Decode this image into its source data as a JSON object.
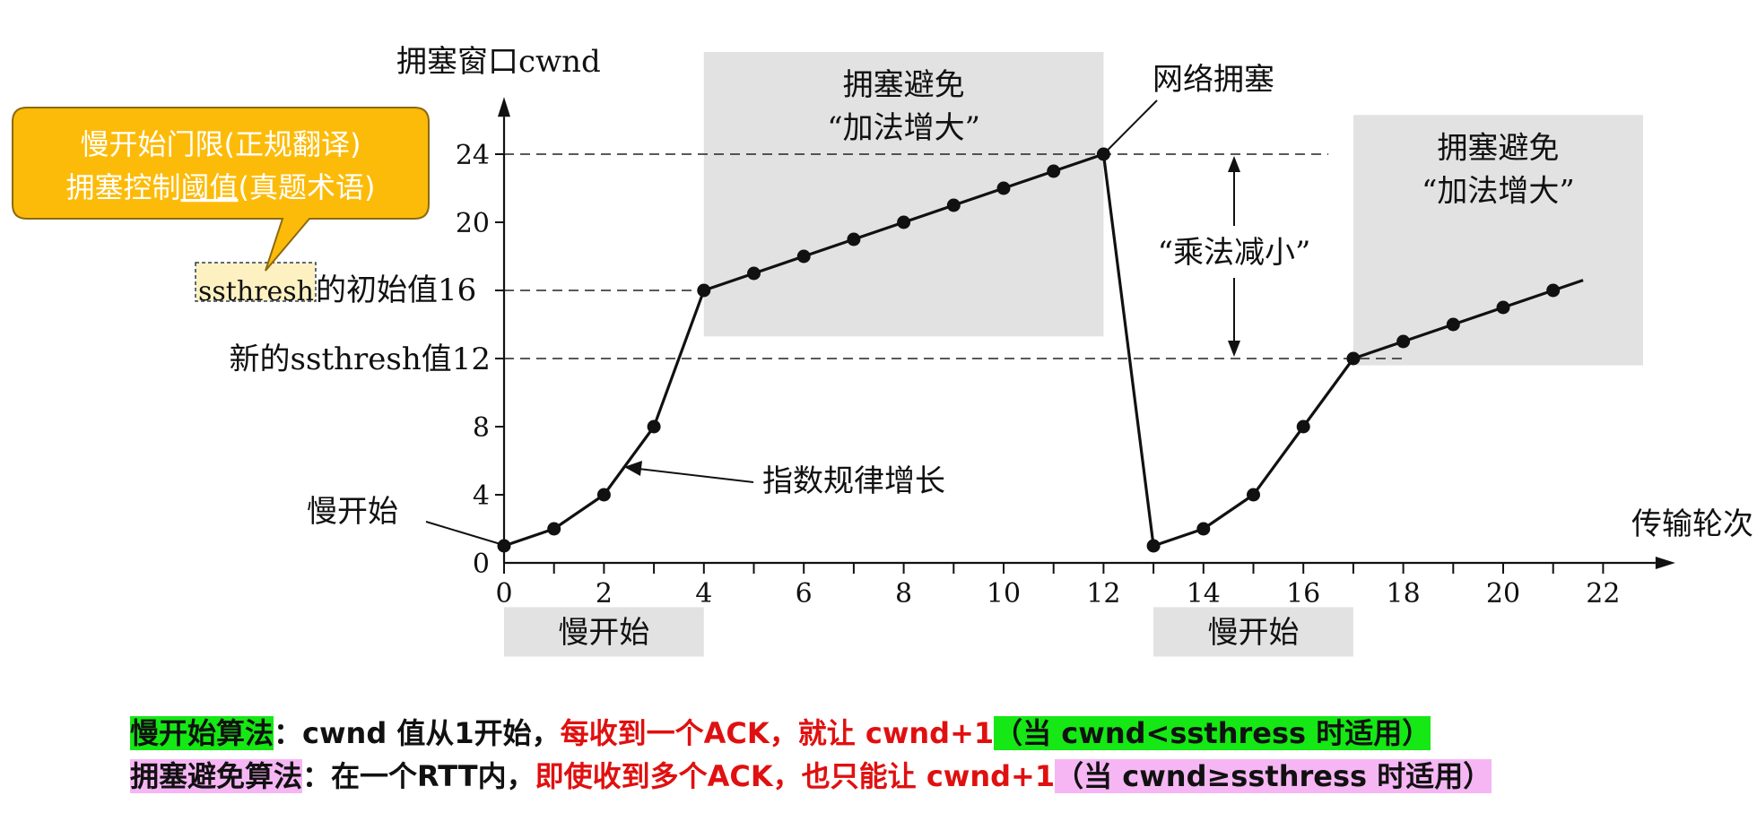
{
  "chart_data": {
    "type": "line",
    "title": "",
    "ylabel": "拥塞窗口cwnd",
    "xlabel": "传输轮次",
    "xlim": [
      0,
      23
    ],
    "ylim": [
      0,
      26
    ],
    "x_ticks": [
      0,
      2,
      4,
      6,
      8,
      10,
      12,
      14,
      16,
      18,
      20,
      22
    ],
    "x_minor_ticks": [
      1,
      3,
      5,
      7,
      9,
      11,
      13,
      15,
      17,
      19,
      21
    ],
    "y_ticks": [
      0,
      4,
      8,
      12,
      16,
      20,
      24
    ],
    "series": [
      {
        "x": [
          0,
          1,
          2,
          3,
          4,
          5,
          6,
          7,
          8,
          9,
          10,
          11,
          12,
          13,
          14,
          15,
          16,
          17,
          18,
          19,
          20,
          21
        ],
        "values": [
          1,
          2,
          4,
          8,
          16,
          17,
          18,
          19,
          20,
          21,
          22,
          23,
          24,
          1,
          2,
          4,
          8,
          12,
          13,
          14,
          15,
          16
        ]
      }
    ],
    "tail_to": [
      21.6,
      16.6
    ],
    "reference_lines": [
      {
        "y": 24,
        "x_from": 0,
        "x_to": 16.5,
        "label": ""
      },
      {
        "y": 16,
        "x_from": 0,
        "x_to": 4,
        "label": "ssthresh的初始值16"
      },
      {
        "y": 12,
        "x_from": 0,
        "x_to": 18,
        "label": "新的ssthresh值12"
      }
    ],
    "shaded_regions": [
      {
        "x0": 0,
        "x1": 4,
        "y0": -2.6,
        "y1": -5.5,
        "label": "慢开始"
      },
      {
        "x0": 13,
        "x1": 17,
        "y0": -2.6,
        "y1": -5.5,
        "label": "慢开始"
      },
      {
        "x0": 4,
        "x1": 12,
        "y0": 13.3,
        "y1": 30.0,
        "label_line1": "拥塞避免",
        "label_line2": "“加法增大”"
      },
      {
        "x0": 17,
        "x1": 22.8,
        "y0": 11.6,
        "y1": 26.3,
        "label_line1": "拥塞避免",
        "label_line2": "“加法增大”"
      }
    ],
    "annotations": {
      "slow_start": "慢开始",
      "exponential": "指数规律增长",
      "congestion": "网络拥塞",
      "mult_decrease": "“乘法减小”"
    },
    "ssthresh_prefix": "ssthresh",
    "ssthresh_suffix": "的初始值16"
  },
  "callout": {
    "line1": "慢开始门限(正规翻译)",
    "line2_pre": "拥塞控制",
    "line2_ul": "阈值",
    "line2_post": "(真题术语)",
    "fill": "#fdbb09",
    "stroke": "#8b6a10"
  },
  "footer": {
    "line1": {
      "term": "慢开始算法",
      "colon": "：cwnd 值从1开始，",
      "red": "每收到一个ACK，就让 cwnd+1",
      "cond": "（当 cwnd<ssthress 时适用）"
    },
    "line2": {
      "term": "拥塞避免算法",
      "colon": "：在一个RTT内，",
      "red": "即使收到多个ACK，也只能让 cwnd+1",
      "cond": "（当 cwnd≥ssthress 时适用）"
    }
  }
}
